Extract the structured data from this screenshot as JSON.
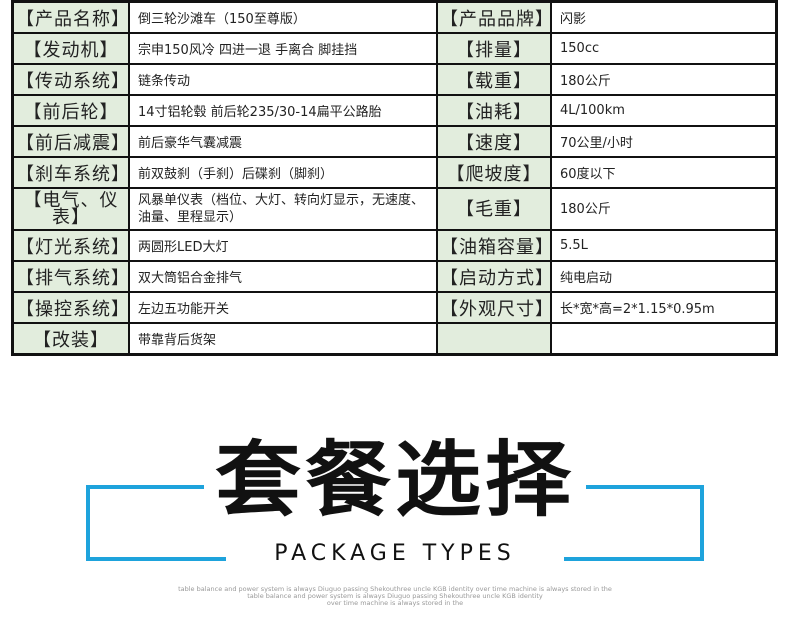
{
  "spec_rows": [
    {
      "k1": "【产品名称】",
      "v1": "倒三轮沙滩车（150至尊版）",
      "k2": "【产品品牌】",
      "v2": "闪影"
    },
    {
      "k1": "【发动机】",
      "v1": "宗申150风冷  四进一退  手离合  脚挂挡",
      "k2": "【排量】",
      "v2": "150cc"
    },
    {
      "k1": "【传动系统】",
      "v1": "链条传动",
      "k2": "【载重】",
      "v2": "180公斤"
    },
    {
      "k1": "【前后轮】",
      "v1": "14寸铝轮毂  前后轮235/30-14扁平公路胎",
      "k2": "【油耗】",
      "v2": "4L/100km"
    },
    {
      "k1": "【前后减震】",
      "v1": "前后豪华气囊减震",
      "k2": "【速度】",
      "v2": "70公里/小时"
    },
    {
      "k1": "【刹车系统】",
      "v1": "前双鼓刹（手刹）后碟刹（脚刹）",
      "k2": "【爬坡度】",
      "v2": "60度以下"
    },
    {
      "k1": "【电气、仪表】",
      "v1": "风暴单仪表（档位、大灯、转向灯显示，无速度、油量、里程显示）",
      "k2": "【毛重】",
      "v2": "180公斤"
    },
    {
      "k1": "【灯光系统】",
      "v1": "两圆形LED大灯",
      "k2": "【油箱容量】",
      "v2": "5.5L"
    },
    {
      "k1": "【排气系统】",
      "v1": "双大筒铝合金排气",
      "k2": "【启动方式】",
      "v2": "纯电启动"
    },
    {
      "k1": "【操控系统】",
      "v1": "左边五功能开关",
      "k2": "【外观尺寸】",
      "v2": "长*宽*高=2*1.15*0.95m"
    },
    {
      "k1": "【改装】",
      "v1": "带靠背后货架",
      "k2": "",
      "v2": ""
    }
  ],
  "banner": {
    "title": "套餐选择",
    "subtitle": "PACKAGE TYPES",
    "fine_print": [
      "table balance and power system is always Diuguo passing Shekouthree uncle KGB identity over time machine is always stored in the",
      "table balance and power system is always Diuguo passing Shekouthree uncle KGB identity",
      "over time machine is always stored in the"
    ]
  },
  "colors": {
    "label_bg": "#e2eddd",
    "accent": "#1ea3dc"
  }
}
